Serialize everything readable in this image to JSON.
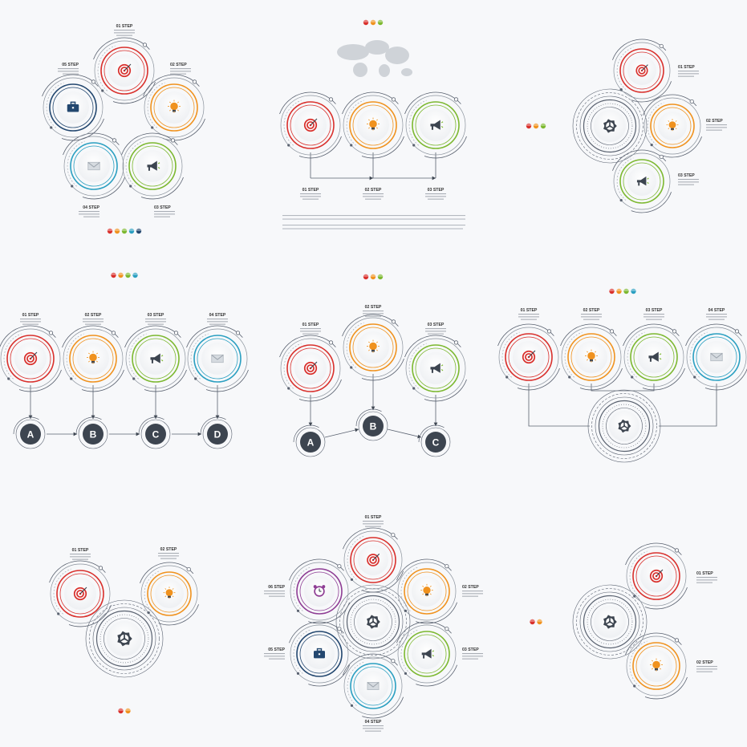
{
  "colors": {
    "red": "#d9302c",
    "orange": "#f0921e",
    "green": "#7cb82f",
    "teal": "#2a9fc1",
    "navy": "#23476f",
    "purple": "#8e3d94",
    "dark": "#3d4550",
    "line": "#5a6270",
    "background": "#f7f8fa"
  },
  "icons": {
    "red": "target-icon",
    "orange": "lightbulb-icon",
    "green": "megaphone-icon",
    "teal": "envelope-icon",
    "navy": "briefcase-icon",
    "purple": "alarm-clock-icon",
    "gear": "gear-icon"
  },
  "letters": [
    "A",
    "B",
    "C",
    "D"
  ],
  "panels": [
    {
      "id": "p1",
      "steps": [
        {
          "label": "01 STEP",
          "color": "red"
        },
        {
          "label": "02 STEP",
          "color": "orange"
        },
        {
          "label": "03 STEP",
          "color": "green"
        },
        {
          "label": "04 STEP",
          "color": "teal"
        },
        {
          "label": "05 STEP",
          "color": "navy"
        }
      ],
      "dots": [
        "red",
        "orange",
        "green",
        "teal",
        "navy"
      ]
    },
    {
      "id": "p2",
      "steps": [
        {
          "label": "01 STEP",
          "color": "red"
        },
        {
          "label": "02 STEP",
          "color": "orange"
        },
        {
          "label": "03 STEP",
          "color": "green"
        }
      ],
      "dots": [
        "red",
        "orange",
        "green"
      ]
    },
    {
      "id": "p3",
      "steps": [
        {
          "label": "01 STEP",
          "color": "red"
        },
        {
          "label": "02 STEP",
          "color": "orange"
        },
        {
          "label": "03 STEP",
          "color": "green"
        }
      ],
      "dots": [
        "red",
        "orange",
        "green"
      ]
    },
    {
      "id": "p4",
      "steps": [
        {
          "label": "01 STEP",
          "color": "red"
        },
        {
          "label": "02 STEP",
          "color": "orange"
        },
        {
          "label": "03 STEP",
          "color": "green"
        },
        {
          "label": "04 STEP",
          "color": "teal"
        }
      ],
      "dots": [
        "red",
        "orange",
        "green",
        "teal"
      ]
    },
    {
      "id": "p5",
      "steps": [
        {
          "label": "01 STEP",
          "color": "red"
        },
        {
          "label": "02 STEP",
          "color": "orange"
        },
        {
          "label": "03 STEP",
          "color": "green"
        }
      ],
      "dots": [
        "red",
        "orange",
        "green"
      ]
    },
    {
      "id": "p6",
      "steps": [
        {
          "label": "01 STEP",
          "color": "red"
        },
        {
          "label": "02 STEP",
          "color": "orange"
        },
        {
          "label": "03 STEP",
          "color": "green"
        },
        {
          "label": "04 STEP",
          "color": "teal"
        }
      ],
      "dots": [
        "red",
        "orange",
        "green",
        "teal"
      ]
    },
    {
      "id": "p7",
      "steps": [
        {
          "label": "01 STEP",
          "color": "red"
        },
        {
          "label": "02 STEP",
          "color": "orange"
        }
      ],
      "dots": [
        "red",
        "orange"
      ]
    },
    {
      "id": "p8",
      "steps": [
        {
          "label": "01 STEP",
          "color": "red"
        },
        {
          "label": "02 STEP",
          "color": "orange"
        },
        {
          "label": "03 STEP",
          "color": "green"
        },
        {
          "label": "04 STEP",
          "color": "teal"
        },
        {
          "label": "05 STEP",
          "color": "navy"
        },
        {
          "label": "06 STEP",
          "color": "purple"
        }
      ],
      "dots": []
    },
    {
      "id": "p9",
      "steps": [
        {
          "label": "01 STEP",
          "color": "red"
        },
        {
          "label": "02 STEP",
          "color": "orange"
        }
      ],
      "dots": [
        "red",
        "orange"
      ]
    }
  ]
}
